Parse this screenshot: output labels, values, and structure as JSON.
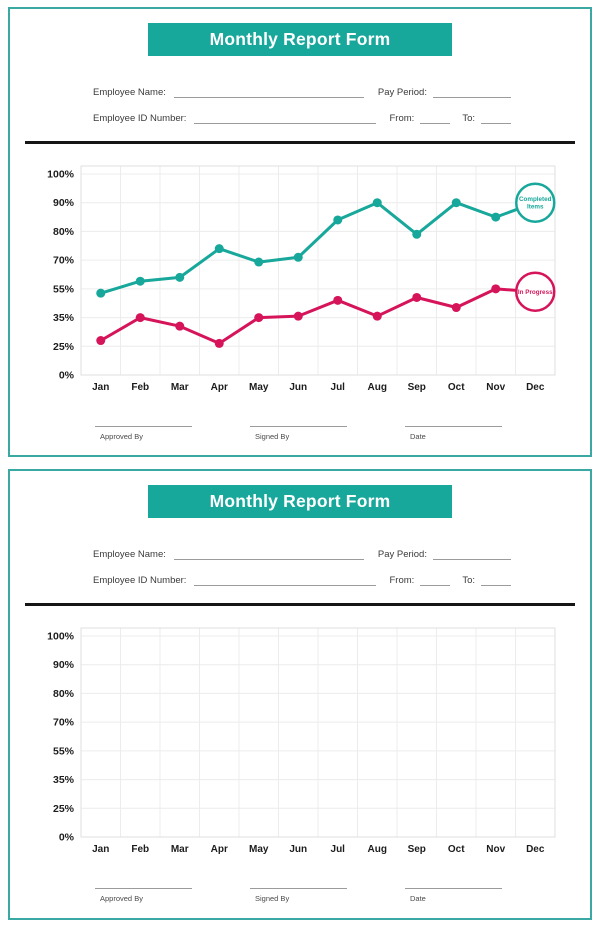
{
  "theme": {
    "teal": "#17A79B",
    "pink": "#D6145A",
    "card_border": "#3BA9A3",
    "banner_bg": "#17A79B",
    "banner_text": "#FFFFFF",
    "divider": "#161616",
    "grid": "#ECECEC",
    "plot_border": "#DFDFDF",
    "axis_text": "#1C1C1C",
    "field_text": "#3A3A3A"
  },
  "form": {
    "title": "Monthly Report Form",
    "employee_name_label": "Employee Name:",
    "pay_period_label": "Pay Period:",
    "employee_id_label": "Employee ID Number:",
    "from_label": "From:",
    "to_label": "To:",
    "employee_name_value": "",
    "pay_period_value": "",
    "employee_id_value": "",
    "from_value": "",
    "to_value": "",
    "signature_labels": [
      "Approved By",
      "Signed By",
      "Date"
    ]
  },
  "chart_data": [
    {
      "type": "line",
      "title": "",
      "categories": [
        "Jan",
        "Feb",
        "Mar",
        "Apr",
        "May",
        "Jun",
        "Jul",
        "Aug",
        "Sep",
        "Oct",
        "Nov",
        "Dec"
      ],
      "ytick_labels": [
        "100%",
        "90%",
        "80%",
        "70%",
        "55%",
        "35%",
        "25%",
        "0%"
      ],
      "ytick_values": [
        100,
        90,
        80,
        70,
        55,
        35,
        25,
        0
      ],
      "ylim": [
        0,
        100
      ],
      "grid": true,
      "legend_position": "in-plot-right-badges",
      "series": [
        {
          "name": "Completed Items",
          "color_key": "teal",
          "values": [
            52,
            59,
            61,
            74,
            69,
            71,
            84,
            90,
            79,
            90,
            85,
            90
          ],
          "badge_lines": [
            "Completed",
            "Items"
          ]
        },
        {
          "name": "In Progress",
          "color_key": "pink",
          "values": [
            27,
            35,
            32,
            26,
            35,
            36,
            47,
            36,
            49,
            42,
            55,
            53
          ],
          "badge_lines": [
            "In Progress"
          ]
        }
      ]
    },
    {
      "type": "line",
      "title": "",
      "categories": [
        "Jan",
        "Feb",
        "Mar",
        "Apr",
        "May",
        "Jun",
        "Jul",
        "Aug",
        "Sep",
        "Oct",
        "Nov",
        "Dec"
      ],
      "ytick_labels": [
        "100%",
        "90%",
        "80%",
        "70%",
        "55%",
        "35%",
        "25%",
        "0%"
      ],
      "ytick_values": [
        100,
        90,
        80,
        70,
        55,
        35,
        25,
        0
      ],
      "ylim": [
        0,
        100
      ],
      "grid": true,
      "series": []
    }
  ]
}
